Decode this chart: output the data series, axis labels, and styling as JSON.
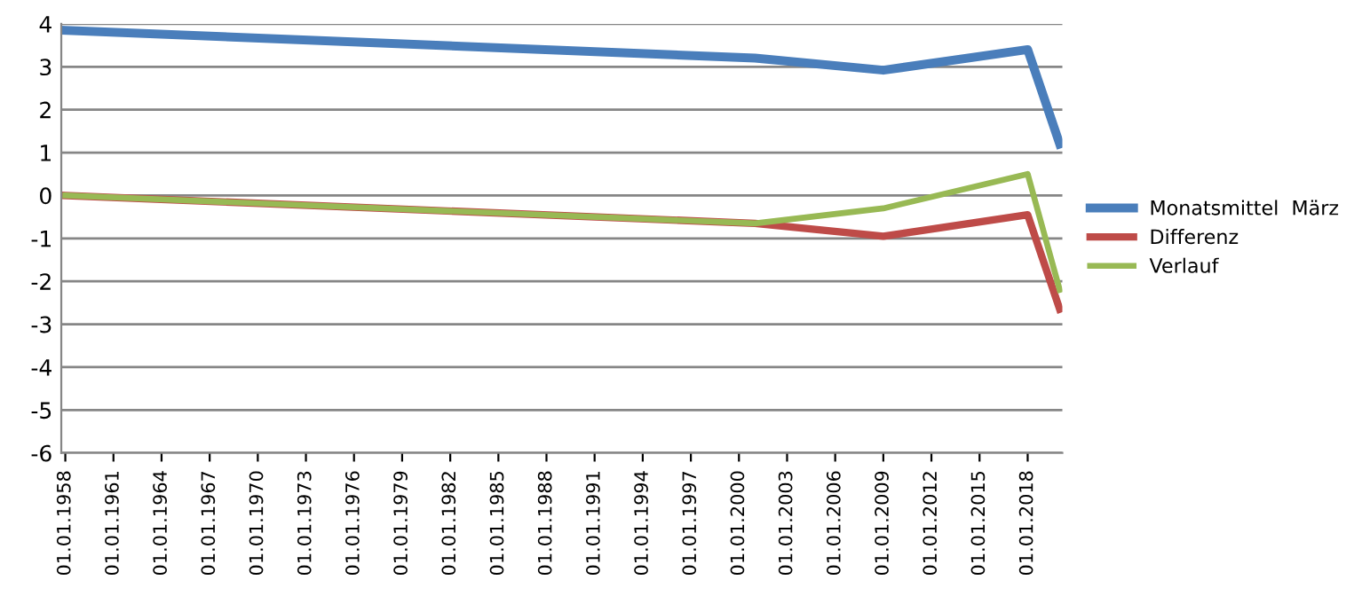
{
  "chart_data": {
    "type": "line",
    "x": [
      "1958-01-01",
      "2001-01-01",
      "2009-01-01",
      "2018-01-01",
      "2020-01-01"
    ],
    "series": [
      {
        "name": "Monatsmittel  März",
        "color": "#4a7ebb",
        "values": [
          3.85,
          3.2,
          2.92,
          3.4,
          1.2
        ]
      },
      {
        "name": "Differenz",
        "color": "#be4b48",
        "values": [
          0,
          -0.65,
          -0.95,
          -0.45,
          -2.65
        ]
      },
      {
        "name": "Verlauf",
        "color": "#98b954",
        "values": [
          0,
          -0.65,
          -0.3,
          0.5,
          -2.2
        ]
      }
    ],
    "ylim": [
      -6,
      4
    ],
    "yticks": [
      -6,
      -5,
      -4,
      -3,
      -2,
      -1,
      0,
      1,
      2,
      3,
      4
    ],
    "xlim": [
      "1957-10-01",
      "2020-03-01"
    ],
    "xticks": [
      {
        "value": "1958-01-01",
        "label": "01.01.1958"
      },
      {
        "value": "1961-01-01",
        "label": "01.01.1961"
      },
      {
        "value": "1964-01-01",
        "label": "01.01.1964"
      },
      {
        "value": "1967-01-01",
        "label": "01.01.1967"
      },
      {
        "value": "1970-01-01",
        "label": "01.01.1970"
      },
      {
        "value": "1973-01-01",
        "label": "01.01.1973"
      },
      {
        "value": "1976-01-01",
        "label": "01.01.1976"
      },
      {
        "value": "1979-01-01",
        "label": "01.01.1979"
      },
      {
        "value": "1982-01-01",
        "label": "01.01.1982"
      },
      {
        "value": "1985-01-01",
        "label": "01.01.1985"
      },
      {
        "value": "1988-01-01",
        "label": "01.01.1988"
      },
      {
        "value": "1991-01-01",
        "label": "01.01.1991"
      },
      {
        "value": "1994-01-01",
        "label": "01.01.1994"
      },
      {
        "value": "1997-01-01",
        "label": "01.01.1997"
      },
      {
        "value": "2000-01-01",
        "label": "01.01.2000"
      },
      {
        "value": "2003-01-01",
        "label": "01.01.2003"
      },
      {
        "value": "2006-01-01",
        "label": "01.01.2006"
      },
      {
        "value": "2009-01-01",
        "label": "01.01.2009"
      },
      {
        "value": "2012-01-01",
        "label": "01.01.2012"
      },
      {
        "value": "2015-01-01",
        "label": "01.01.2015"
      },
      {
        "value": "2018-01-01",
        "label": "01.01.2018"
      }
    ],
    "grid": "y",
    "legend": "right",
    "marker": "none",
    "line_style": "solid"
  }
}
